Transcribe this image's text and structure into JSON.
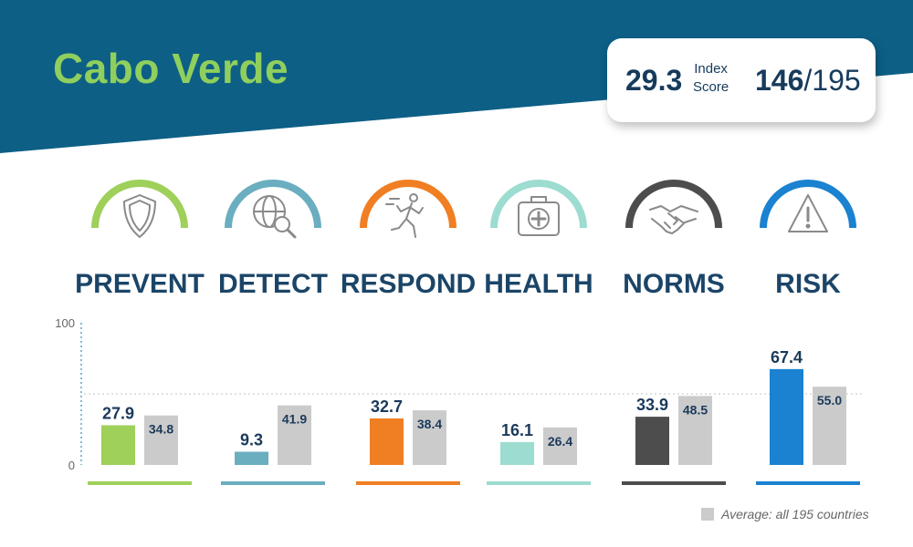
{
  "country": "Cabo Verde",
  "index_score": "29.3",
  "index_score_label": [
    "Index",
    "Score"
  ],
  "rank": "146",
  "rank_total": "/195",
  "colors": {
    "banner": "#0d5f86",
    "title": "#8fcf5d",
    "average_bar": "#cbcbcb"
  },
  "legend": "Average: all 195 countries",
  "chart_data": {
    "type": "bar",
    "categories": [
      "PREVENT",
      "DETECT",
      "RESPOND",
      "HEALTH",
      "NORMS",
      "RISK"
    ],
    "series": [
      {
        "values": [
          27.9,
          9.3,
          32.7,
          16.1,
          33.9,
          67.4
        ],
        "colors": [
          "#9ed05a",
          "#6aaec0",
          "#f07e22",
          "#9ddcd0",
          "#4d4d4d",
          "#1a82d0"
        ]
      },
      {
        "name": "Average: all 195 countries",
        "values": [
          34.8,
          41.9,
          38.4,
          26.4,
          48.5,
          55.0
        ],
        "color": "#cbcbcb"
      }
    ],
    "value_labels": [
      [
        "27.9",
        "9.3",
        "32.7",
        "16.1",
        "33.9",
        "67.4"
      ],
      [
        "34.8",
        "41.9",
        "38.4",
        "26.4",
        "48.5",
        "55.0"
      ]
    ],
    "icons": [
      "shield-icon",
      "globe-magnifier-icon",
      "running-person-icon",
      "first-aid-kit-icon",
      "handshake-icon",
      "warning-triangle-icon"
    ],
    "ylim": [
      0,
      100
    ],
    "yticks": [
      "0",
      "100"
    ],
    "grid": "dotted reference line at 50"
  }
}
